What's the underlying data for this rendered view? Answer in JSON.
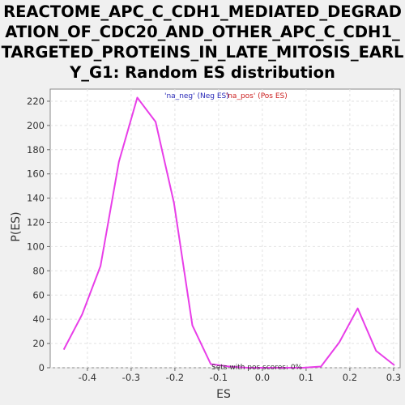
{
  "chart_data": {
    "type": "line",
    "title": "REACTOME_APC_C_CDH1_MEDIATED_DEGRADATION_OF_CDC20_AND_OTHER_APC_C_CDH1_TARGETED_PROTEINS_IN_LATE_MITOSIS_EARLY_G1: Random ES distribution",
    "xlabel": "ES",
    "ylabel": "P(ES)",
    "xlim": [
      -0.485,
      0.315
    ],
    "ylim": [
      0,
      230
    ],
    "xticks": [
      -0.4,
      -0.3,
      -0.2,
      -0.1,
      0.0,
      0.1,
      0.2,
      0.3
    ],
    "xtick_labels": [
      "-0.4",
      "-0.3",
      "-0.2",
      "-0.1",
      "0.0",
      "0.1",
      "0.2",
      "0.3"
    ],
    "yticks": [
      0,
      20,
      40,
      60,
      80,
      100,
      120,
      140,
      160,
      180,
      200,
      220
    ],
    "grid": true,
    "series": [
      {
        "name": "'na_neg' (Neg ES)",
        "color": "#e83ee8",
        "x": [
          -0.454,
          -0.412,
          -0.37,
          -0.328,
          -0.286,
          -0.244,
          -0.202,
          -0.16,
          -0.118,
          -0.076,
          -0.034,
          0.008,
          0.05,
          0.092,
          0.134,
          0.176,
          0.218,
          0.26,
          0.302
        ],
        "y": [
          15,
          44,
          84,
          170,
          223,
          203,
          136,
          35,
          3,
          1,
          0,
          0,
          0,
          0,
          1,
          21,
          49,
          14,
          2
        ]
      }
    ],
    "legend": [
      {
        "text": "'na_neg' (Neg ES)",
        "color": "#2a2ab8"
      },
      {
        "text": "'na_pos' (Pos ES)",
        "color": "#cc2020"
      }
    ],
    "legend_position": "top-center",
    "annotation": "Sets with pos scores: 0%"
  }
}
